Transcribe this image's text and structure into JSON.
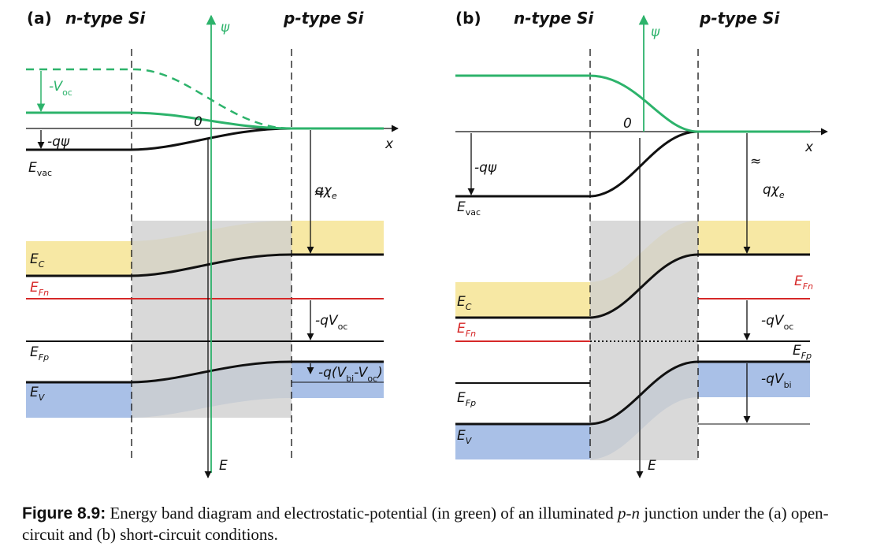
{
  "panels": [
    {
      "tag": "(a)",
      "n_label": "n-type Si",
      "p_label": "p-type Si",
      "psi_axis": "ψ",
      "x_axis": "x",
      "e_axis": "E",
      "origin": "0",
      "neg_voc": "-V",
      "neg_voc_sub": "oc",
      "neg_q_psi": "-qψ",
      "evac": "E",
      "evac_sub": "vac",
      "q_chi": "qχ",
      "q_chi_sub": "e",
      "ec": "E",
      "ec_sub": "C",
      "efn": "E",
      "efn_sub": "Fn",
      "efp": "E",
      "efp_sub": "Fp",
      "ev": "E",
      "ev_sub": "V",
      "neg_q_voc": "-qV",
      "neg_q_voc_sub": "oc",
      "vbi_pre": "-q(V",
      "vbi_sub1": "bi",
      "vbi_mid": "-V",
      "vbi_sub2": "oc",
      "vbi_post": ")",
      "break_mark": "≈"
    },
    {
      "tag": "(b)",
      "n_label": "n-type Si",
      "p_label": "p-type Si",
      "psi_axis": "ψ",
      "x_axis": "x",
      "e_axis": "E",
      "origin": "0",
      "neg_q_psi": "-qψ",
      "evac": "E",
      "evac_sub": "vac",
      "q_chi": "qχ",
      "q_chi_sub": "e",
      "ec": "E",
      "ec_sub": "C",
      "efn_left": "E",
      "efn_left_sub": "Fn",
      "efn_right": "E",
      "efn_right_sub": "Fn",
      "efp_left": "E",
      "efp_left_sub": "Fp",
      "efp_right": "E",
      "efp_right_sub": "Fp",
      "ev": "E",
      "ev_sub": "V",
      "neg_q_voc": "-qV",
      "neg_q_voc_sub": "oc",
      "neg_q_vbi": "-qV",
      "neg_q_vbi_sub": "bi",
      "break_mark": "≈"
    }
  ],
  "caption": {
    "label": "Figure 8.9:",
    "text_1": " Energy band diagram and electrostatic-potential (in green) of an illuminated ",
    "pn": "p-n",
    "text_2": " junction under the (a) open-circuit and (b) short-circuit conditions."
  },
  "colors": {
    "potential": "#2db36b",
    "fermi_n": "#d62828",
    "conduction_band": "#f7e8a4",
    "valence_band": "#a4bde6",
    "depletion": "#d0d0d0"
  }
}
